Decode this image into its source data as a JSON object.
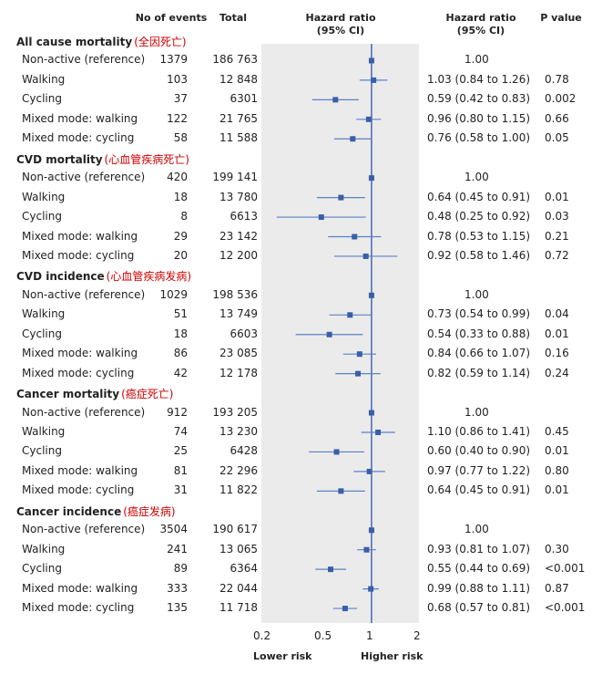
{
  "headers": {
    "events": "No of events",
    "total": "Total",
    "hazard_ratio_plot": "Hazard ratio\n(95% CI)",
    "hazard_ratio_text": "Hazard ratio\n(95% CI)",
    "p_value": "P value"
  },
  "chart_data": {
    "type": "forest",
    "x_scale": "log",
    "xlim": [
      0.2,
      2
    ],
    "x_ticks": [
      "0.2",
      "0.5",
      "1",
      "2"
    ],
    "reference_line": 1,
    "x_label_left": "Lower risk",
    "x_label_right": "Higher risk",
    "point_color": "#3a5ea8",
    "line_color": "#5b82c4",
    "sections": [
      {
        "title": "All cause mortality",
        "title_cn": "(全因死亡)",
        "rows": [
          {
            "label": "Non-active (reference)",
            "events": "1379",
            "total": "186 763",
            "hr": 1.0,
            "lo": 1.0,
            "hi": 1.0,
            "hr_text": "1.00",
            "p": "",
            "ref": true
          },
          {
            "label": "Walking",
            "events": "103",
            "total": "12 848",
            "hr": 1.03,
            "lo": 0.84,
            "hi": 1.26,
            "hr_text": "1.03 (0.84 to 1.26)",
            "p": "0.78"
          },
          {
            "label": "Cycling",
            "events": "37",
            "total": "6301",
            "hr": 0.59,
            "lo": 0.42,
            "hi": 0.83,
            "hr_text": "0.59 (0.42 to 0.83)",
            "p": "0.002"
          },
          {
            "label": "Mixed mode: walking",
            "events": "122",
            "total": "21 765",
            "hr": 0.96,
            "lo": 0.8,
            "hi": 1.15,
            "hr_text": "0.96 (0.80 to 1.15)",
            "p": "0.66"
          },
          {
            "label": "Mixed mode: cycling",
            "events": "58",
            "total": "11 588",
            "hr": 0.76,
            "lo": 0.58,
            "hi": 1.0,
            "hr_text": "0.76 (0.58 to 1.00)",
            "p": "0.05"
          }
        ]
      },
      {
        "title": "CVD mortality",
        "title_cn": "(心血管疾病死亡)",
        "rows": [
          {
            "label": "Non-active (reference)",
            "events": "420",
            "total": "199 141",
            "hr": 1.0,
            "lo": 1.0,
            "hi": 1.0,
            "hr_text": "1.00",
            "p": "",
            "ref": true
          },
          {
            "label": "Walking",
            "events": "18",
            "total": "13 780",
            "hr": 0.64,
            "lo": 0.45,
            "hi": 0.91,
            "hr_text": "0.64 (0.45 to 0.91)",
            "p": "0.01"
          },
          {
            "label": "Cycling",
            "events": "8",
            "total": "6613",
            "hr": 0.48,
            "lo": 0.25,
            "hi": 0.92,
            "hr_text": "0.48 (0.25 to 0.92)",
            "p": "0.03"
          },
          {
            "label": "Mixed mode: walking",
            "events": "29",
            "total": "23 142",
            "hr": 0.78,
            "lo": 0.53,
            "hi": 1.15,
            "hr_text": "0.78 (0.53 to 1.15)",
            "p": "0.21"
          },
          {
            "label": "Mixed mode: cycling",
            "events": "20",
            "total": "12 200",
            "hr": 0.92,
            "lo": 0.58,
            "hi": 1.46,
            "hr_text": "0.92 (0.58 to 1.46)",
            "p": "0.72"
          }
        ]
      },
      {
        "title": "CVD incidence",
        "title_cn": "(心血管疾病发病)",
        "rows": [
          {
            "label": "Non-active (reference)",
            "events": "1029",
            "total": "198 536",
            "hr": 1.0,
            "lo": 1.0,
            "hi": 1.0,
            "hr_text": "1.00",
            "p": "",
            "ref": true
          },
          {
            "label": "Walking",
            "events": "51",
            "total": "13 749",
            "hr": 0.73,
            "lo": 0.54,
            "hi": 0.99,
            "hr_text": "0.73 (0.54 to 0.99)",
            "p": "0.04"
          },
          {
            "label": "Cycling",
            "events": "18",
            "total": "6603",
            "hr": 0.54,
            "lo": 0.33,
            "hi": 0.88,
            "hr_text": "0.54 (0.33 to 0.88)",
            "p": "0.01"
          },
          {
            "label": "Mixed mode: walking",
            "events": "86",
            "total": "23 085",
            "hr": 0.84,
            "lo": 0.66,
            "hi": 1.07,
            "hr_text": "0.84 (0.66 to 1.07)",
            "p": "0.16"
          },
          {
            "label": "Mixed mode: cycling",
            "events": "42",
            "total": "12 178",
            "hr": 0.82,
            "lo": 0.59,
            "hi": 1.14,
            "hr_text": "0.82 (0.59 to 1.14)",
            "p": "0.24"
          }
        ]
      },
      {
        "title": "Cancer mortality",
        "title_cn": "(癌症死亡)",
        "rows": [
          {
            "label": "Non-active (reference)",
            "events": "912",
            "total": "193 205",
            "hr": 1.0,
            "lo": 1.0,
            "hi": 1.0,
            "hr_text": "1.00",
            "p": "",
            "ref": true
          },
          {
            "label": "Walking",
            "events": "74",
            "total": "13 230",
            "hr": 1.1,
            "lo": 0.86,
            "hi": 1.41,
            "hr_text": "1.10 (0.86 to 1.41)",
            "p": "0.45"
          },
          {
            "label": "Cycling",
            "events": "25",
            "total": "6428",
            "hr": 0.6,
            "lo": 0.4,
            "hi": 0.9,
            "hr_text": "0.60 (0.40 to 0.90)",
            "p": "0.01"
          },
          {
            "label": "Mixed mode: walking",
            "events": "81",
            "total": "22 296",
            "hr": 0.97,
            "lo": 0.77,
            "hi": 1.22,
            "hr_text": "0.97 (0.77 to 1.22)",
            "p": "0.80"
          },
          {
            "label": "Mixed mode: cycling",
            "events": "31",
            "total": "11 822",
            "hr": 0.64,
            "lo": 0.45,
            "hi": 0.91,
            "hr_text": "0.64 (0.45 to 0.91)",
            "p": "0.01"
          }
        ]
      },
      {
        "title": "Cancer incidence",
        "title_cn": "(癌症发病)",
        "rows": [
          {
            "label": "Non-active (reference)",
            "events": "3504",
            "total": "190 617",
            "hr": 1.0,
            "lo": 1.0,
            "hi": 1.0,
            "hr_text": "1.00",
            "p": "",
            "ref": true
          },
          {
            "label": "Walking",
            "events": "241",
            "total": "13 065",
            "hr": 0.93,
            "lo": 0.81,
            "hi": 1.07,
            "hr_text": "0.93 (0.81 to 1.07)",
            "p": "0.30"
          },
          {
            "label": "Cycling",
            "events": "89",
            "total": "6364",
            "hr": 0.55,
            "lo": 0.44,
            "hi": 0.69,
            "hr_text": "0.55 (0.44 to 0.69)",
            "p": "<0.001"
          },
          {
            "label": "Mixed mode: walking",
            "events": "333",
            "total": "22 044",
            "hr": 0.99,
            "lo": 0.88,
            "hi": 1.11,
            "hr_text": "0.99 (0.88 to 1.11)",
            "p": "0.87"
          },
          {
            "label": "Mixed mode: cycling",
            "events": "135",
            "total": "11 718",
            "hr": 0.68,
            "lo": 0.57,
            "hi": 0.81,
            "hr_text": "0.68 (0.57 to 0.81)",
            "p": "<0.001"
          }
        ]
      }
    ]
  }
}
